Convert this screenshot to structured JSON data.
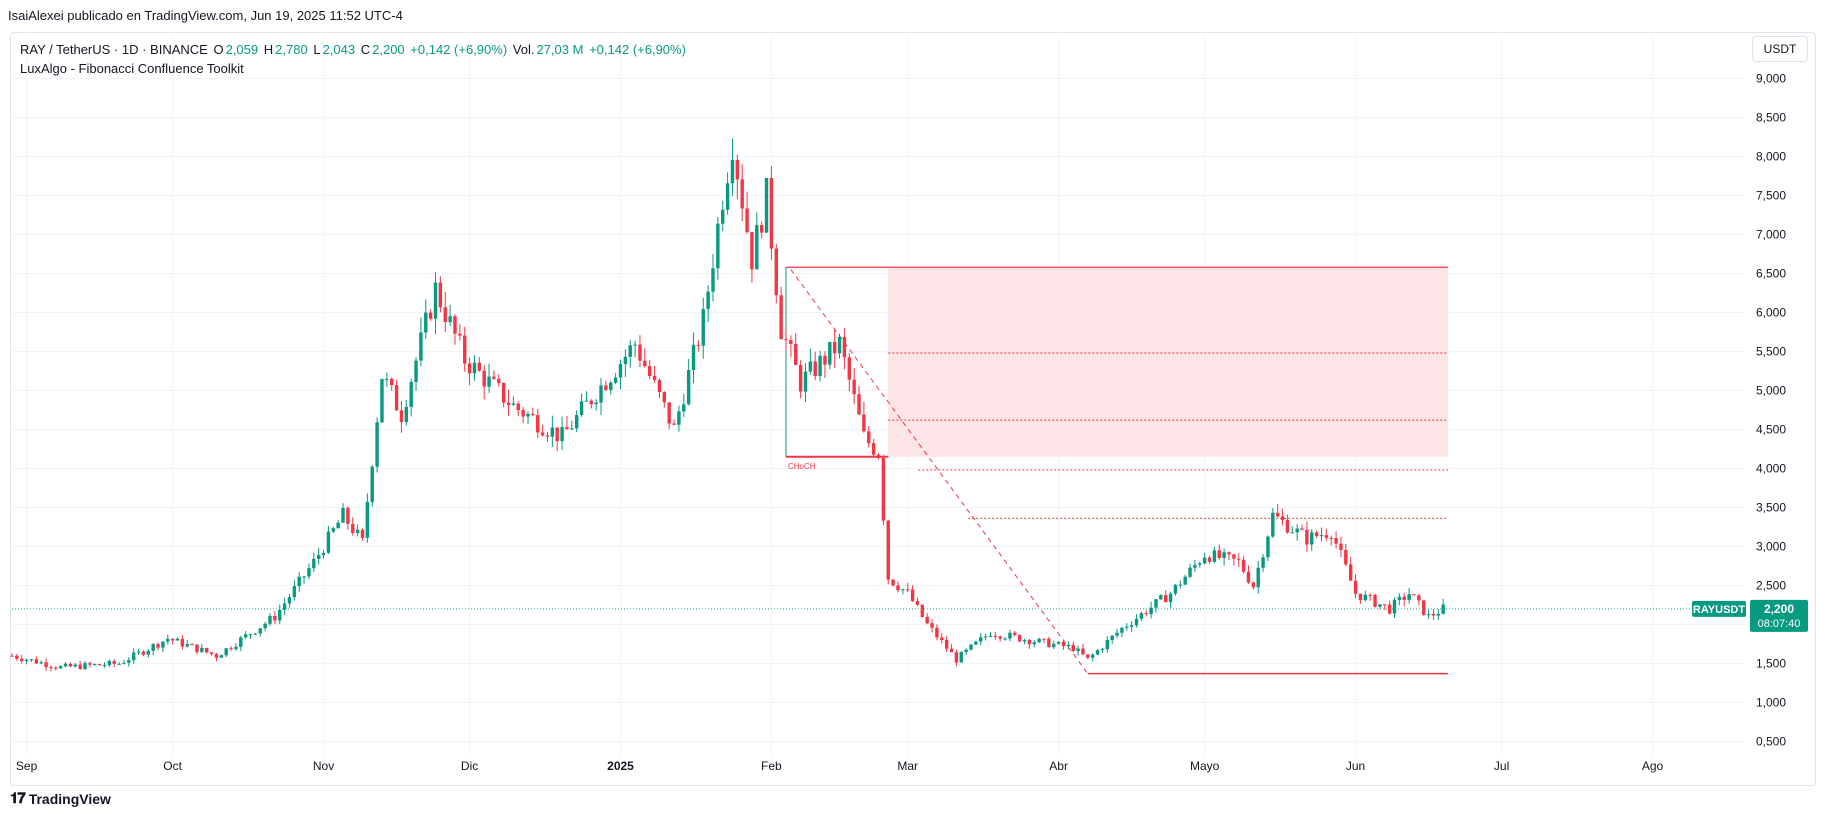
{
  "header": {
    "attribution": "IsaiAlexei publicado en TradingView.com, Jun 19, 2025 11:52 UTC-4"
  },
  "legend": {
    "symbol": "RAY / TetherUS · 1D · BINANCE",
    "open_label": "O",
    "open": "2,059",
    "high_label": "H",
    "high": "2,780",
    "low_label": "L",
    "low": "2,043",
    "close_label": "C",
    "close": "2,200",
    "change": "+0,142 (+6,90%)",
    "vol_label": "Vol.",
    "vol": "27,03 M",
    "vol_change": "+0,142 (+6,90%)",
    "indicator": "LuxAlgo - Fibonacci Confluence Toolkit"
  },
  "currency": "USDT",
  "footer": {
    "brand": "TradingView"
  },
  "colors": {
    "up": "#089981",
    "down": "#f23645",
    "grid": "#f0f3fa",
    "zone_fill": "#fde4e6",
    "price_line": "#22ab94",
    "text": "#131722"
  },
  "chart_data": {
    "type": "candlestick",
    "y_axis": {
      "ticks": [
        "9,000",
        "8,500",
        "8,000",
        "7,500",
        "7,000",
        "6,500",
        "6,000",
        "5,500",
        "5,000",
        "4,500",
        "4,000",
        "3,500",
        "3,000",
        "2,500",
        "2,000",
        "1,500",
        "1,000",
        "0,500"
      ],
      "tick_values": [
        9,
        8.5,
        8,
        7.5,
        7,
        6.5,
        6,
        5.5,
        5,
        4.5,
        4,
        3.5,
        3,
        2.5,
        2,
        1.5,
        1,
        0.5
      ],
      "range": [
        0.05,
        9.5
      ]
    },
    "x_axis": {
      "labels": [
        "Sep",
        "Oct",
        "Nov",
        "Dic",
        "2025",
        "Feb",
        "Mar",
        "Abr",
        "Mayo",
        "Jun",
        "Jul",
        "Ago"
      ],
      "label_dates": [
        "2024-09-01",
        "2024-10-01",
        "2024-11-01",
        "2024-12-01",
        "2025-01-01",
        "2025-02-01",
        "2025-03-01",
        "2025-04-01",
        "2025-05-01",
        "2025-06-01",
        "2025-07-01",
        "2025-08-01"
      ],
      "range": [
        "2024-08-29",
        "2025-08-20"
      ]
    },
    "series_path": [
      {
        "date": "2024-08-29",
        "value": 1.6
      },
      {
        "date": "2024-09-08",
        "value": 1.45
      },
      {
        "date": "2024-09-20",
        "value": 1.5
      },
      {
        "date": "2024-09-30",
        "value": 1.82
      },
      {
        "date": "2024-10-10",
        "value": 1.6
      },
      {
        "date": "2024-10-22",
        "value": 2.1
      },
      {
        "date": "2024-10-30",
        "value": 2.8
      },
      {
        "date": "2024-11-05",
        "value": 3.4
      },
      {
        "date": "2024-11-09",
        "value": 3.05
      },
      {
        "date": "2024-11-13",
        "value": 5.2
      },
      {
        "date": "2024-11-17",
        "value": 4.7
      },
      {
        "date": "2024-11-24",
        "value": 6.3
      },
      {
        "date": "2024-11-30",
        "value": 5.4
      },
      {
        "date": "2024-12-10",
        "value": 4.8
      },
      {
        "date": "2024-12-20",
        "value": 4.4
      },
      {
        "date": "2024-12-26",
        "value": 4.9
      },
      {
        "date": "2025-01-04",
        "value": 5.6
      },
      {
        "date": "2025-01-12",
        "value": 4.5
      },
      {
        "date": "2025-01-18",
        "value": 5.9
      },
      {
        "date": "2025-01-22",
        "value": 7.5
      },
      {
        "date": "2025-01-24",
        "value": 8.2
      },
      {
        "date": "2025-01-28",
        "value": 6.7
      },
      {
        "date": "2025-01-31",
        "value": 7.5
      },
      {
        "date": "2025-02-03",
        "value": 5.8
      },
      {
        "date": "2025-02-07",
        "value": 5.1
      },
      {
        "date": "2025-02-15",
        "value": 5.6
      },
      {
        "date": "2025-02-20",
        "value": 4.4
      },
      {
        "date": "2025-02-23",
        "value": 4.2
      },
      {
        "date": "2025-02-25",
        "value": 2.6
      },
      {
        "date": "2025-03-01",
        "value": 2.4
      },
      {
        "date": "2025-03-05",
        "value": 2.0
      },
      {
        "date": "2025-03-11",
        "value": 1.55
      },
      {
        "date": "2025-03-18",
        "value": 1.9
      },
      {
        "date": "2025-03-26",
        "value": 1.8
      },
      {
        "date": "2025-04-04",
        "value": 1.7
      },
      {
        "date": "2025-04-07",
        "value": 1.55
      },
      {
        "date": "2025-04-14",
        "value": 1.95
      },
      {
        "date": "2025-04-24",
        "value": 2.4
      },
      {
        "date": "2025-05-01",
        "value": 2.9
      },
      {
        "date": "2025-05-08",
        "value": 2.8
      },
      {
        "date": "2025-05-11",
        "value": 2.5
      },
      {
        "date": "2025-05-15",
        "value": 3.4
      },
      {
        "date": "2025-05-22",
        "value": 3.1
      },
      {
        "date": "2025-05-27",
        "value": 3.2
      },
      {
        "date": "2025-06-01",
        "value": 2.4
      },
      {
        "date": "2025-06-08",
        "value": 2.2
      },
      {
        "date": "2025-06-12",
        "value": 2.4
      },
      {
        "date": "2025-06-16",
        "value": 2.1
      },
      {
        "date": "2025-06-19",
        "value": 2.2
      }
    ],
    "current_price": {
      "value": 2.2,
      "symbol_tag": "RAYUSDT",
      "price": "2,200",
      "countdown": "08:07:40"
    },
    "fib_zone": {
      "top": 6.58,
      "bottom": 4.15,
      "x_start": "2025-02-25",
      "x_end": "2025-06-20",
      "box_x_start": "2025-02-04",
      "levels": [
        5.48,
        4.62,
        3.98,
        3.36
      ]
    },
    "choch": {
      "label": "CHoCH",
      "level": 4.15,
      "x_start": "2025-02-04",
      "x_end": "2025-02-25"
    },
    "swing_low_line": {
      "value": 1.37,
      "x_start": "2025-04-07",
      "x_end": "2025-06-20"
    },
    "dashed_trend": {
      "from": {
        "date": "2025-02-05",
        "value": 6.55
      },
      "to": {
        "date": "2025-04-07",
        "value": 1.37
      }
    },
    "grid": true
  }
}
